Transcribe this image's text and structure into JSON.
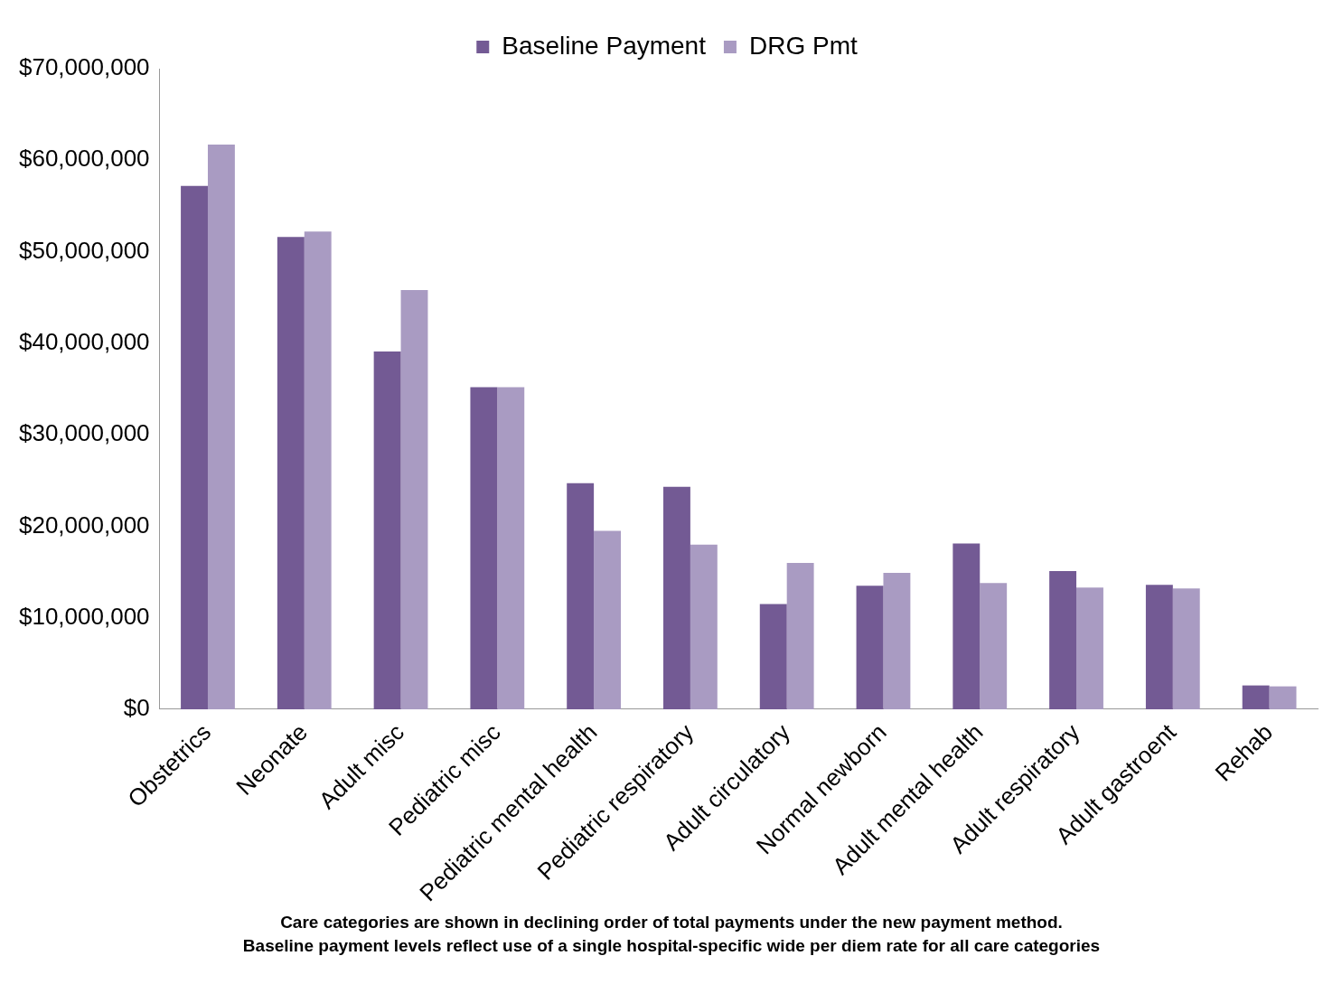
{
  "chart_data": {
    "type": "bar",
    "categories": [
      "Obstetrics",
      "Neonate",
      "Adult misc",
      "Pediatric misc",
      "Pediatric mental health",
      "Pediatric respiratory",
      "Adult circulatory",
      "Normal newborn",
      "Adult mental health",
      "Adult respiratory",
      "Adult gastroent",
      "Rehab"
    ],
    "series": [
      {
        "name": "Baseline Payment",
        "color": "#735a94",
        "values": [
          57200000,
          51600000,
          39100000,
          35200000,
          24700000,
          24300000,
          11500000,
          13500000,
          18100000,
          15100000,
          13600000,
          2600000
        ]
      },
      {
        "name": "DRG Pmt",
        "color": "#a99bc2",
        "values": [
          61700000,
          52200000,
          45800000,
          35200000,
          19500000,
          18000000,
          16000000,
          14900000,
          13800000,
          13300000,
          13200000,
          2500000
        ]
      }
    ],
    "ylim": [
      0,
      70000000
    ],
    "yticks": [
      {
        "value": 0,
        "label": "$0"
      },
      {
        "value": 10000000,
        "label": "$10,000,000"
      },
      {
        "value": 20000000,
        "label": "$20,000,000"
      },
      {
        "value": 30000000,
        "label": "$30,000,000"
      },
      {
        "value": 40000000,
        "label": "$40,000,000"
      },
      {
        "value": 50000000,
        "label": "$50,000,000"
      },
      {
        "value": 60000000,
        "label": "$60,000,000"
      },
      {
        "value": 70000000,
        "label": "$70,000,000"
      }
    ],
    "grid": false,
    "legend": "top",
    "annotations": [
      "Care categories are shown in declining order of total payments under the new payment method.",
      "Baseline payment levels reflect use of a single hospital-specific wide per diem rate for all care categories"
    ]
  }
}
